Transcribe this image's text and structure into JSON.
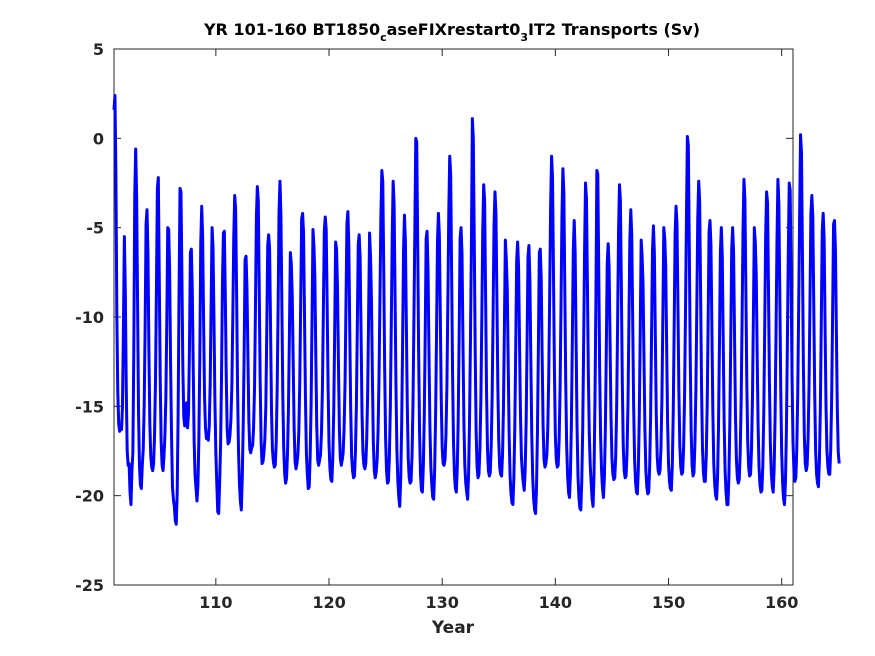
{
  "chart_data": {
    "type": "line",
    "title": {
      "part1": "YR 101-160 BT1850",
      "sub1": "c",
      "part2": "aseFIXrestart0",
      "sub2": "3",
      "part3": "IT2 Transports (Sv)"
    },
    "xlabel": "Year",
    "ylabel": "",
    "xlim": [
      101,
      161
    ],
    "ylim": [
      -25,
      5
    ],
    "xticks": [
      110,
      120,
      130,
      140,
      150,
      160
    ],
    "yticks": [
      5,
      0,
      -5,
      -10,
      -15,
      -20,
      -25
    ],
    "grid": false,
    "line_color": "#0000ff",
    "samples_per_year": 12,
    "series": [
      {
        "values": [
          1.6,
          2.4,
          -2.0,
          -9.8,
          -14.2,
          -16.0,
          -16.4,
          -16.2,
          -16.3,
          -15.0,
          -10.5,
          -5.5,
          -8.6,
          -14.0,
          -17.5,
          -18.3,
          -18.2,
          -19.8,
          -20.5,
          -18.6,
          -17.6,
          -12.0,
          -3.2,
          -0.6,
          -3.2,
          -9.2,
          -15.3,
          -18.3,
          -19.4,
          -19.6,
          -18.3,
          -17.4,
          -15.0,
          -10.6,
          -4.8,
          -4.0,
          -6.4,
          -11.8,
          -16.0,
          -17.8,
          -18.4,
          -18.6,
          -18.2,
          -16.6,
          -13.6,
          -8.4,
          -2.8,
          -2.2,
          -7.8,
          -13.4,
          -17.0,
          -18.3,
          -18.6,
          -17.8,
          -16.6,
          -14.5,
          -10.2,
          -5.0,
          -5.1,
          -7.4,
          -12.6,
          -16.6,
          -19.5,
          -20.2,
          -20.6,
          -21.4,
          -21.6,
          -19.9,
          -15.4,
          -8.6,
          -2.8,
          -3.0,
          -7.6,
          -12.8,
          -15.6,
          -16.1,
          -15.3,
          -14.8,
          -16.2,
          -15.4,
          -11.8,
          -6.4,
          -6.2,
          -8.5,
          -12.8,
          -17.0,
          -18.9,
          -19.6,
          -20.3,
          -19.4,
          -16.8,
          -12.2,
          -5.9,
          -3.8,
          -5.5,
          -10.2,
          -14.4,
          -16.2,
          -16.8,
          -16.7,
          -16.9,
          -16.1,
          -13.7,
          -9.3,
          -5.0,
          -6.1,
          -10.1,
          -14.7,
          -17.6,
          -19.3,
          -20.9,
          -21.0,
          -19.3,
          -17.2,
          -13.4,
          -8.1,
          -5.3,
          -5.2,
          -8.7,
          -13.2,
          -16.3,
          -17.1,
          -17.0,
          -16.6,
          -15.7,
          -13.8,
          -10.0,
          -5.5,
          -3.2,
          -4.0,
          -8.6,
          -13.9,
          -17.4,
          -19.3,
          -20.3,
          -20.8,
          -19.0,
          -16.1,
          -12.1,
          -6.8,
          -6.6,
          -8.4,
          -12.1,
          -15.8,
          -17.4,
          -17.6,
          -17.3,
          -17.2,
          -16.2,
          -14.0,
          -9.5,
          -4.4,
          -2.7,
          -3.5,
          -8.4,
          -13.6,
          -17.0,
          -18.2,
          -18.1,
          -17.6,
          -16.8,
          -15.0,
          -10.8,
          -6.0,
          -5.4,
          -6.2,
          -10.6,
          -15.2,
          -17.4,
          -18.1,
          -18.4,
          -18.3,
          -17.0,
          -14.1,
          -9.6,
          -4.1,
          -2.4,
          -4.3,
          -9.3,
          -14.4,
          -17.4,
          -18.8,
          -19.3,
          -19.0,
          -17.6,
          -15.1,
          -11.0,
          -6.4,
          -7.0,
          -8.8,
          -12.5,
          -16.2,
          -18.1,
          -18.5,
          -18.2,
          -17.7,
          -16.4,
          -13.6,
          -9.0,
          -4.5,
          -4.2,
          -5.3,
          -9.9,
          -14.5,
          -17.6,
          -18.8,
          -19.6,
          -19.5,
          -17.8,
          -14.9,
          -10.1,
          -5.1,
          -6.0,
          -7.8,
          -12.2,
          -16.1,
          -18.0,
          -18.3,
          -18.0,
          -17.7,
          -16.5,
          -14.0,
          -9.7,
          -5.2,
          -4.4,
          -5.1,
          -9.2,
          -13.8,
          -17.1,
          -18.5,
          -19.1,
          -19.2,
          -17.9,
          -15.3,
          -10.9,
          -5.8,
          -6.2,
          -8.4,
          -12.6,
          -16.3,
          -17.9,
          -18.3,
          -18.0,
          -17.6,
          -16.2,
          -13.7,
          -9.3,
          -4.8,
          -4.1,
          -6.0,
          -10.8,
          -15.2,
          -17.8,
          -18.6,
          -19.0,
          -18.9,
          -17.6,
          -15.0,
          -10.6,
          -5.9,
          -5.4,
          -6.7,
          -11.0,
          -15.4,
          -17.6,
          -18.3,
          -18.5,
          -18.2,
          -16.8,
          -14.2,
          -9.8,
          -5.3,
          -6.6,
          -9.0,
          -13.4,
          -17.0,
          -18.6,
          -19.0,
          -18.7,
          -18.0,
          -16.4,
          -13.5,
          -9.0,
          -4.4,
          -1.8,
          -2.4,
          -7.2,
          -12.8,
          -16.8,
          -18.6,
          -19.3,
          -19.2,
          -17.8,
          -15.1,
          -10.6,
          -5.6,
          -2.4,
          -3.7,
          -8.6,
          -13.9,
          -17.5,
          -19.2,
          -20.1,
          -20.6,
          -19.1,
          -16.2,
          -11.7,
          -6.3,
          -4.3,
          -5.8,
          -10.4,
          -15.0,
          -17.9,
          -19.0,
          -19.3,
          -19.2,
          -17.8,
          -15.0,
          -10.3,
          -5.2,
          0.0,
          -0.2,
          -5.6,
          -11.8,
          -16.4,
          -18.8,
          -19.7,
          -19.8,
          -18.4,
          -15.6,
          -11.0,
          -5.6,
          -5.2,
          -7.4,
          -12.0,
          -16.2,
          -18.4,
          -19.4,
          -20.1,
          -20.2,
          -18.6,
          -15.6,
          -11.0,
          -5.8,
          -4.2,
          -5.4,
          -9.9,
          -14.6,
          -17.3,
          -18.2,
          -18.3,
          -18.0,
          -16.6,
          -13.9,
          -9.2,
          -4.2,
          -1.0,
          -2.0,
          -7.4,
          -13.1,
          -17.0,
          -18.8,
          -19.6,
          -19.8,
          -18.5,
          -15.7,
          -11.0,
          -5.6,
          -5.0,
          -6.4,
          -11.2,
          -15.8,
          -18.3,
          -19.3,
          -19.8,
          -20.2,
          -18.8,
          -15.8,
          -11.2,
          -5.9,
          1.1,
          0.0,
          -5.6,
          -11.9,
          -16.4,
          -18.4,
          -19.0,
          -18.8,
          -17.4,
          -14.7,
          -10.2,
          -5.2,
          -2.6,
          -3.5,
          -8.6,
          -14.0,
          -17.3,
          -18.6,
          -18.9,
          -18.7,
          -17.2,
          -14.4,
          -9.8,
          -4.8,
          -3.0,
          -4.2,
          -8.8,
          -13.8,
          -17.0,
          -18.4,
          -18.8,
          -18.9,
          -17.7,
          -15.0,
          -10.5,
          -5.7,
          -6.8,
          -8.4,
          -12.6,
          -16.6,
          -18.9,
          -19.9,
          -20.4,
          -20.5,
          -19.0,
          -16.2,
          -11.7,
          -6.8,
          -5.8,
          -7.2,
          -11.4,
          -15.4,
          -17.8,
          -18.7,
          -19.3,
          -19.7,
          -18.6,
          -16.0,
          -11.5,
          -6.6,
          -6.0,
          -7.9,
          -12.4,
          -16.6,
          -19.0,
          -20.2,
          -20.8,
          -21.0,
          -19.6,
          -16.5,
          -11.7,
          -6.4,
          -6.2,
          -7.8,
          -12.2,
          -16.1,
          -18.0,
          -18.4,
          -18.2,
          -17.7,
          -16.2,
          -13.3,
          -8.7,
          -3.8,
          -1.0,
          -2.2,
          -7.4,
          -12.9,
          -16.6,
          -18.0,
          -18.4,
          -18.3,
          -16.9,
          -14.1,
          -9.4,
          -4.4,
          -1.7,
          -3.0,
          -8.2,
          -13.6,
          -17.2,
          -18.9,
          -19.8,
          -20.1,
          -18.8,
          -16.0,
          -11.3,
          -6.3,
          -4.6,
          -6.4,
          -11.4,
          -16.1,
          -18.9,
          -20.1,
          -20.7,
          -20.8,
          -19.2,
          -16.3,
          -11.6,
          -6.3,
          -2.5,
          -3.4,
          -8.1,
          -13.2,
          -16.6,
          -18.3,
          -19.3,
          -20.2,
          -20.6,
          -18.8,
          -14.7,
          -9.2,
          -1.8,
          -2.0,
          -7.3,
          -13.0,
          -16.7,
          -18.6,
          -19.6,
          -20.1,
          -19.0,
          -16.4,
          -12.0,
          -7.0,
          -5.9,
          -7.2,
          -11.4,
          -15.5,
          -17.9,
          -18.8,
          -19.1,
          -19.0,
          -17.8,
          -15.1,
          -10.5,
          -5.3,
          -2.6,
          -3.5,
          -8.4,
          -13.7,
          -17.2,
          -18.6,
          -19.0,
          -18.9,
          -17.6,
          -14.9,
          -10.4,
          -5.7,
          -4.0,
          -5.4,
          -10.1,
          -14.9,
          -17.9,
          -19.2,
          -19.8,
          -19.9,
          -18.5,
          -15.6,
          -10.9,
          -5.7,
          -6.6,
          -8.2,
          -12.4,
          -16.4,
          -18.6,
          -19.5,
          -19.9,
          -19.8,
          -18.4,
          -15.6,
          -11.1,
          -6.3,
          -4.9,
          -6.4,
          -11.0,
          -15.4,
          -17.8,
          -18.6,
          -18.8,
          -18.6,
          -17.3,
          -14.6,
          -10.0,
          -5.0,
          -5.6,
          -7.1,
          -11.5,
          -15.8,
          -18.2,
          -19.2,
          -19.6,
          -19.7,
          -18.3,
          -15.4,
          -10.6,
          -5.3,
          -3.8,
          -4.8,
          -9.4,
          -14.2,
          -17.2,
          -18.4,
          -18.8,
          -18.7,
          -17.3,
          -14.5,
          -9.8,
          -4.6,
          0.1,
          -0.4,
          -5.9,
          -12.1,
          -16.4,
          -18.3,
          -18.9,
          -18.7,
          -17.1,
          -14.2,
          -9.5,
          -4.5,
          -2.4,
          -3.5,
          -8.5,
          -13.8,
          -17.3,
          -18.7,
          -19.2,
          -19.2,
          -17.8,
          -15.0,
          -10.3,
          -5.2,
          -4.6,
          -6.0,
          -10.6,
          -15.3,
          -18.2,
          -19.4,
          -20.0,
          -20.2,
          -19.0,
          -16.2,
          -11.6,
          -6.4,
          -5.0,
          -6.6,
          -11.3,
          -15.9,
          -18.6,
          -19.8,
          -20.5,
          -20.5,
          -19.0,
          -16.0,
          -11.3,
          -6.2,
          -5.0,
          -6.4,
          -11.0,
          -15.5,
          -18.0,
          -19.0,
          -19.3,
          -19.1,
          -17.6,
          -14.8,
          -10.2,
          -5.1,
          -2.3,
          -3.4,
          -8.4,
          -13.6,
          -17.0,
          -18.4,
          -18.9,
          -18.8,
          -17.4,
          -14.6,
          -10.0,
          -5.0,
          -5.8,
          -7.6,
          -12.0,
          -16.1,
          -18.4,
          -19.4,
          -19.8,
          -19.7,
          -18.3,
          -15.4,
          -10.7,
          -5.5,
          -3.0,
          -3.6,
          -8.4,
          -13.6,
          -17.1,
          -18.7,
          -19.5,
          -19.8,
          -18.5,
          -15.6,
          -10.9,
          -5.8,
          -2.3,
          -3.6,
          -8.7,
          -14.0,
          -17.6,
          -19.3,
          -20.2,
          -20.5,
          -19.2,
          -16.4,
          -11.7,
          -6.5,
          -2.5,
          -2.9,
          -7.9,
          -13.4,
          -17.0,
          -18.6,
          -19.2,
          -19.0,
          -17.4,
          -14.4,
          -9.6,
          -4.5,
          0.2,
          -0.8,
          -6.5,
          -12.6,
          -16.6,
          -18.2,
          -18.6,
          -18.3,
          -16.8,
          -13.9,
          -9.2,
          -4.2,
          -3.2,
          -4.4,
          -9.2,
          -14.2,
          -17.5,
          -18.8,
          -19.3,
          -19.5,
          -18.0,
          -15.1,
          -10.3,
          -5.2,
          -4.2,
          -5.6,
          -10.4,
          -15.0,
          -17.5,
          -18.4,
          -18.8,
          -18.8,
          -17.4,
          -14.5,
          -9.9,
          -4.8,
          -4.6,
          -6.2,
          -10.8,
          -15.2,
          -17.6,
          -18.2
        ]
      }
    ]
  }
}
